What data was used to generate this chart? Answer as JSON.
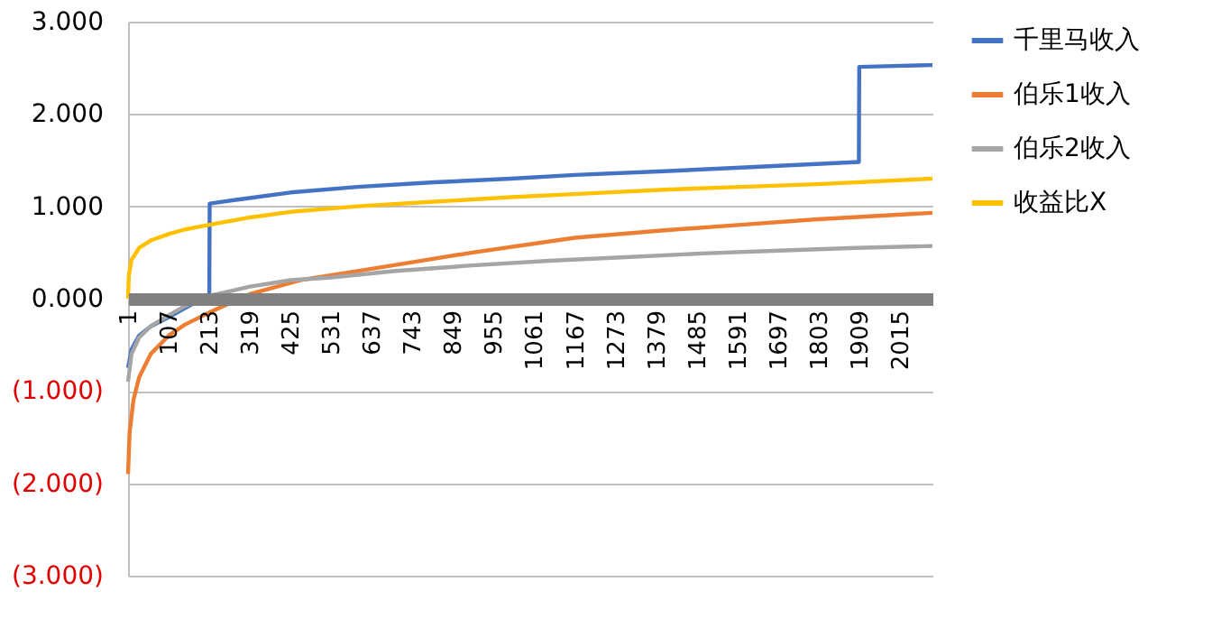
{
  "chart_data": {
    "type": "line",
    "xlim": [
      1,
      2100
    ],
    "xticks": [
      1,
      107,
      213,
      319,
      425,
      531,
      637,
      743,
      849,
      955,
      1061,
      1167,
      1273,
      1379,
      1485,
      1591,
      1697,
      1803,
      1909,
      2015
    ],
    "ylim": [
      -3,
      3
    ],
    "yticks": [
      {
        "value": 3,
        "label": "3.000"
      },
      {
        "value": 2,
        "label": "2.000"
      },
      {
        "value": 1,
        "label": "1.000"
      },
      {
        "value": 0,
        "label": "0.000"
      },
      {
        "value": -1,
        "label": "(1.000)"
      },
      {
        "value": -2,
        "label": "(2.000)"
      },
      {
        "value": -3,
        "label": "(3.000)"
      }
    ],
    "grid": "y",
    "legend": "right",
    "line_style": "solid",
    "marker": "none",
    "series": [
      {
        "name": "千里马收入",
        "color": "#4472c4",
        "x": [
          1,
          10,
          30,
          60,
          107,
          150,
          213,
          214,
          300,
          425,
          600,
          800,
          1000,
          1167,
          1400,
          1600,
          1908,
          1909,
          2000,
          2100
        ],
        "values": [
          -0.75,
          -0.55,
          -0.4,
          -0.3,
          -0.2,
          -0.1,
          0.04,
          1.03,
          1.08,
          1.15,
          1.21,
          1.26,
          1.3,
          1.34,
          1.38,
          1.42,
          1.48,
          2.51,
          2.52,
          2.53
        ]
      },
      {
        "name": "伯乐1收入",
        "color": "#ed7d31",
        "x": [
          1,
          5,
          15,
          30,
          60,
          107,
          150,
          213,
          319,
          450,
          600,
          750,
          900,
          1167,
          1400,
          1600,
          1800,
          2100
        ],
        "values": [
          -1.9,
          -1.45,
          -1.1,
          -0.85,
          -0.6,
          -0.4,
          -0.28,
          -0.15,
          0.05,
          0.2,
          0.3,
          0.4,
          0.5,
          0.66,
          0.74,
          0.8,
          0.86,
          0.93
        ]
      },
      {
        "name": "伯乐2收入",
        "color": "#a5a5a5",
        "x": [
          1,
          10,
          30,
          60,
          107,
          150,
          213,
          319,
          425,
          531,
          700,
          900,
          1100,
          1300,
          1500,
          1700,
          1900,
          2100
        ],
        "values": [
          -0.9,
          -0.6,
          -0.42,
          -0.3,
          -0.18,
          -0.08,
          0.03,
          0.13,
          0.2,
          0.23,
          0.3,
          0.36,
          0.41,
          0.45,
          0.49,
          0.52,
          0.55,
          0.57
        ]
      },
      {
        "name": "收益比X",
        "color": "#ffc000",
        "x": [
          1,
          3,
          10,
          30,
          60,
          107,
          150,
          213,
          319,
          425,
          600,
          800,
          1000,
          1200,
          1400,
          1600,
          1800,
          2100
        ],
        "values": [
          0.0,
          0.25,
          0.42,
          0.55,
          0.63,
          0.7,
          0.75,
          0.8,
          0.88,
          0.94,
          1.0,
          1.05,
          1.1,
          1.14,
          1.18,
          1.21,
          1.24,
          1.3
        ]
      }
    ]
  }
}
